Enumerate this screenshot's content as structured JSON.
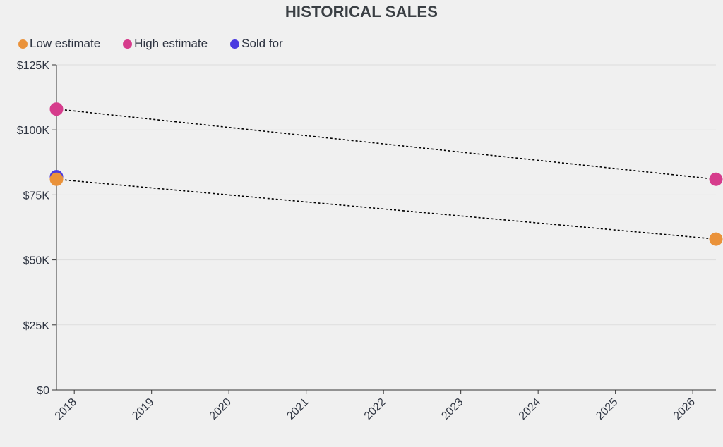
{
  "chart_data": {
    "type": "scatter",
    "title": "HISTORICAL SALES",
    "xlabel": "",
    "ylabel": "",
    "x_ticks": [
      "2018",
      "2019",
      "2020",
      "2021",
      "2022",
      "2023",
      "2024",
      "2025",
      "2026"
    ],
    "x_range": [
      2017.77,
      2026.3
    ],
    "y_ticks": [
      {
        "value": 0,
        "label": "$0"
      },
      {
        "value": 25000,
        "label": "$25K"
      },
      {
        "value": 50000,
        "label": "$50K"
      },
      {
        "value": 75000,
        "label": "$75K"
      },
      {
        "value": 100000,
        "label": "$100K"
      },
      {
        "value": 125000,
        "label": "$125K"
      }
    ],
    "ylim": [
      0,
      125000
    ],
    "grid": "horizontal",
    "legend_position": "top-left",
    "series": [
      {
        "name": "Low estimate",
        "color": "#ea923a",
        "points": [
          {
            "x": 2017.77,
            "y": 81000
          },
          {
            "x": 2026.3,
            "y": 58000
          }
        ]
      },
      {
        "name": "High estimate",
        "color": "#d63c8c",
        "points": [
          {
            "x": 2017.77,
            "y": 108000
          },
          {
            "x": 2026.3,
            "y": 81000
          }
        ]
      },
      {
        "name": "Sold for",
        "color": "#4a3ae0",
        "points": [
          {
            "x": 2017.77,
            "y": 82000
          }
        ]
      }
    ],
    "trend_lines": [
      {
        "series": "High estimate",
        "style": "dotted",
        "color": "#000000"
      },
      {
        "series": "Low estimate",
        "style": "dotted",
        "color": "#000000"
      }
    ]
  }
}
